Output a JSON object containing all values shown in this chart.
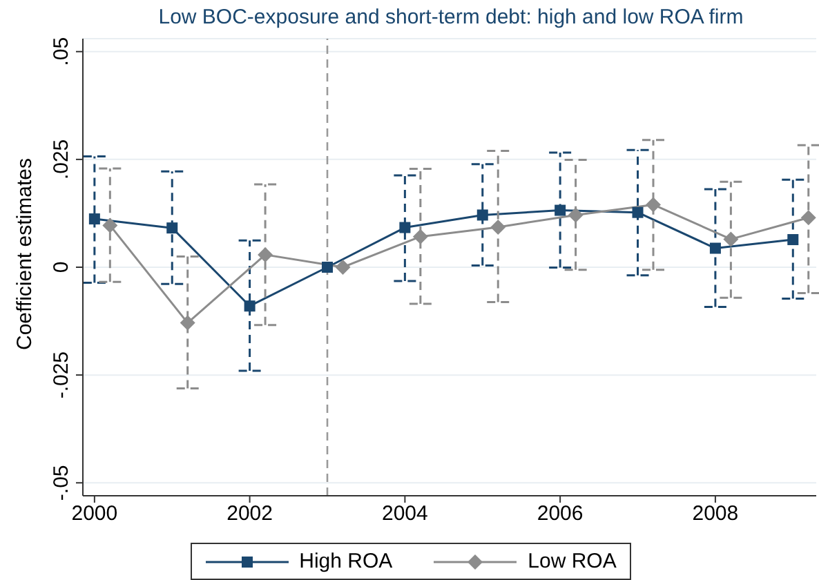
{
  "chart_data": {
    "type": "line",
    "title": "Low BOC-exposure and short-term debt: high and low ROA firm",
    "ylabel": "Coefficient estimates",
    "xlim": [
      1999.85,
      2009.3
    ],
    "xticks": [
      2000,
      2002,
      2004,
      2006,
      2008
    ],
    "ylim": [
      -0.053,
      0.053
    ],
    "yticks": [
      {
        "value": -0.05,
        "label": "-.05"
      },
      {
        "value": -0.025,
        "label": "-.025"
      },
      {
        "value": 0,
        "label": "0"
      },
      {
        "value": 0.025,
        "label": ".025"
      },
      {
        "value": 0.05,
        "label": ".05"
      }
    ],
    "grid": "y",
    "legend": "bottom",
    "line_style": "solid",
    "ref_lines": [
      {
        "axis": "x",
        "value": 2003,
        "color": "#999999",
        "line_style": "dashed"
      }
    ],
    "series": [
      {
        "name": "High ROA",
        "color": "#1a476f",
        "marker": "square",
        "x": [
          2000,
          2001,
          2002,
          2003,
          2004,
          2005,
          2006,
          2007,
          2008,
          2009
        ],
        "values": [
          0.0112,
          0.0091,
          -0.009,
          0,
          0.0092,
          0.0121,
          0.0132,
          0.0127,
          0.0044,
          0.0064
        ],
        "errors": [
          [
            -0.0036,
            0.0257
          ],
          [
            -0.0039,
            0.0222
          ],
          [
            -0.024,
            0.0062
          ],
          null,
          [
            -0.0032,
            0.0213
          ],
          [
            0.0004,
            0.0239
          ],
          [
            -0.0001,
            0.0266
          ],
          [
            -0.0019,
            0.0272
          ],
          [
            -0.0092,
            0.0181
          ],
          [
            -0.0073,
            0.0203
          ]
        ]
      },
      {
        "name": "Low ROA",
        "color": "#8c8c8c",
        "marker": "diamond",
        "x": [
          2000.2,
          2001.2,
          2002.2,
          2003.2,
          2004.2,
          2005.2,
          2006.2,
          2007.2,
          2008.2,
          2009.2
        ],
        "values": [
          0.0097,
          -0.0129,
          0.0029,
          0,
          0.0071,
          0.0093,
          0.0121,
          0.0145,
          0.0065,
          0.0115
        ],
        "errors": [
          [
            -0.0034,
            0.0229
          ],
          [
            -0.0281,
            0.0025
          ],
          [
            -0.0134,
            0.0192
          ],
          null,
          [
            -0.0085,
            0.0228
          ],
          [
            -0.0081,
            0.027
          ],
          [
            -0.0006,
            0.0249
          ],
          [
            -0.0006,
            0.0295
          ],
          [
            -0.0071,
            0.0198
          ],
          [
            -0.006,
            0.0283
          ]
        ]
      }
    ]
  }
}
